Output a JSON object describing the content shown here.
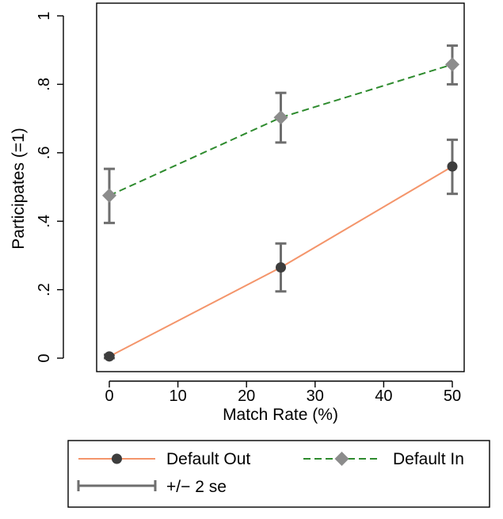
{
  "chart_data": {
    "type": "line",
    "title": "",
    "xlabel": "Match Rate (%)",
    "ylabel": "Participates (=1)",
    "xlim": [
      -2,
      52
    ],
    "ylim": [
      -0.04,
      1.04
    ],
    "x_ticks": [
      0,
      10,
      20,
      30,
      40,
      50
    ],
    "x_tick_labels": [
      "0",
      "10",
      "20",
      "30",
      "40",
      "50"
    ],
    "y_ticks": [
      0,
      0.2,
      0.4,
      0.6,
      0.8,
      1
    ],
    "y_tick_labels": [
      "0",
      ".2",
      ".4",
      ".6",
      ".8",
      "1"
    ],
    "grid": false,
    "legend_position": "bottom",
    "series": [
      {
        "name": "Default Out",
        "color": "#f4956b",
        "line_style": "solid",
        "marker": "circle",
        "marker_color": "#3d3d3d",
        "x": [
          0,
          25,
          50
        ],
        "y": [
          0.005,
          0.265,
          0.56
        ],
        "ci_low": [
          0.0,
          0.195,
          0.48
        ],
        "ci_high": [
          0.01,
          0.335,
          0.638
        ]
      },
      {
        "name": "Default In",
        "color": "#2e8b2e",
        "line_style": "dashed",
        "marker": "diamond",
        "marker_color": "#8c8c8c",
        "x": [
          0,
          25,
          50
        ],
        "y": [
          0.475,
          0.703,
          0.858
        ],
        "ci_low": [
          0.395,
          0.63,
          0.8
        ],
        "ci_high": [
          0.553,
          0.775,
          0.913
        ]
      }
    ],
    "error_bar_label": "+/− 2 se",
    "error_bar_color": "#6e6e6e"
  }
}
